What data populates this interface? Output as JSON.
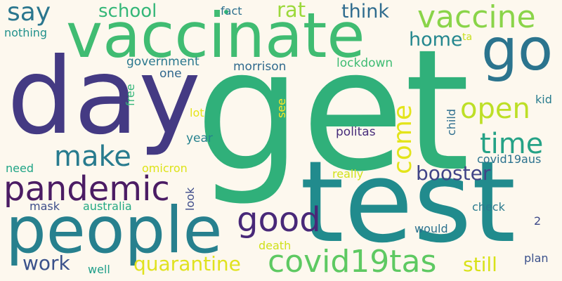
{
  "background": "#fdf8ee",
  "words": [
    {
      "text": "get",
      "color": "#30b07a"
    },
    {
      "text": "test",
      "color": "#218b8d"
    },
    {
      "text": "day",
      "color": "#443a83"
    },
    {
      "text": "vaccinate",
      "color": "#40bc72"
    },
    {
      "text": "people",
      "color": "#27808e"
    },
    {
      "text": "go",
      "color": "#2b748e"
    },
    {
      "text": "vaccine",
      "color": "#8ad449"
    },
    {
      "text": "pandemic",
      "color": "#4b1c64"
    },
    {
      "text": "covid19tas",
      "color": "#5ec962"
    },
    {
      "text": "good",
      "color": "#482878"
    },
    {
      "text": "make",
      "color": "#287b8e"
    },
    {
      "text": "open",
      "color": "#bddf26"
    },
    {
      "text": "time",
      "color": "#25a286"
    },
    {
      "text": "come",
      "color": "#e3e41a"
    },
    {
      "text": "say",
      "color": "#2a768e"
    },
    {
      "text": "school",
      "color": "#35b778"
    },
    {
      "text": "rat",
      "color": "#9cd93b"
    },
    {
      "text": "think",
      "color": "#2f6c8e"
    },
    {
      "text": "home",
      "color": "#24878e"
    },
    {
      "text": "booster",
      "color": "#414487"
    },
    {
      "text": "work",
      "color": "#3b528b"
    },
    {
      "text": "quarantine",
      "color": "#e0e21f"
    },
    {
      "text": "still",
      "color": "#d8e219"
    },
    {
      "text": "government",
      "color": "#2a788e"
    },
    {
      "text": "morrison",
      "color": "#306a8e"
    },
    {
      "text": "lockdown",
      "color": "#3fbc73"
    },
    {
      "text": "fact",
      "color": "#2d708e"
    },
    {
      "text": "nothing",
      "color": "#21918c"
    },
    {
      "text": "one",
      "color": "#31688e"
    },
    {
      "text": "free",
      "color": "#34b679"
    },
    {
      "text": "ta",
      "color": "#c8e020"
    },
    {
      "text": "lot",
      "color": "#e5e419"
    },
    {
      "text": "see",
      "color": "#fde725"
    },
    {
      "text": "child",
      "color": "#2e6e8e"
    },
    {
      "text": "kid",
      "color": "#287c8e"
    },
    {
      "text": "politas",
      "color": "#472d7b"
    },
    {
      "text": "year",
      "color": "#26828e"
    },
    {
      "text": "covid19aus",
      "color": "#2c728e"
    },
    {
      "text": "need",
      "color": "#20a486"
    },
    {
      "text": "omicron",
      "color": "#dde318"
    },
    {
      "text": "really",
      "color": "#d2e21b"
    },
    {
      "text": "look",
      "color": "#3e4c8a"
    },
    {
      "text": "mask",
      "color": "#3d4e8a"
    },
    {
      "text": "australia",
      "color": "#23a983"
    },
    {
      "text": "check",
      "color": "#297a8e"
    },
    {
      "text": "2",
      "color": "#3e4989"
    },
    {
      "text": "would",
      "color": "#2c718e"
    },
    {
      "text": "death",
      "color": "#d0e11c"
    },
    {
      "text": "well",
      "color": "#1f9e89"
    },
    {
      "text": "plan",
      "color": "#3b518b"
    }
  ]
}
